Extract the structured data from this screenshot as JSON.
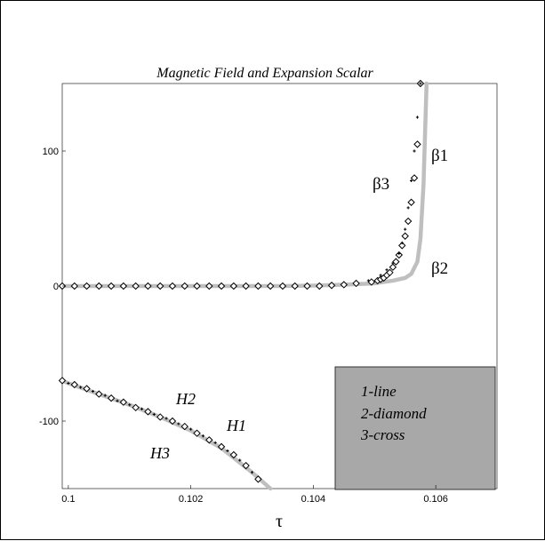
{
  "chart_data": {
    "type": "line",
    "title": "Magnetic Field and Expansion Scalar",
    "xlabel": "τ",
    "ylabel": "",
    "xlim": [
      0.0999,
      0.107
    ],
    "ylim": [
      -150,
      150
    ],
    "xticks": [
      {
        "value": 0.1,
        "label": "0.1"
      },
      {
        "value": 0.102,
        "label": "0.102"
      },
      {
        "value": 0.104,
        "label": "0.104"
      },
      {
        "value": 0.106,
        "label": "0.106"
      }
    ],
    "yticks": [
      {
        "value": 100,
        "label": "100"
      },
      {
        "value": 0,
        "label": "0"
      },
      {
        "value": -100,
        "label": "-100"
      }
    ],
    "grid": false,
    "series": [
      {
        "name": "β1",
        "style": "line",
        "color": "#bfbfbf",
        "x": [
          0.0999,
          0.101,
          0.102,
          0.103,
          0.1035,
          0.104,
          0.1045,
          0.105,
          0.1053,
          0.1055,
          0.1056,
          0.1057,
          0.10575,
          0.1058,
          0.10583,
          0.10585
        ],
        "y": [
          0,
          0,
          0,
          0,
          0,
          0.3,
          1,
          2,
          4,
          6,
          9,
          18,
          35,
          75,
          120,
          150
        ]
      },
      {
        "name": "β2",
        "style": "diamond",
        "color": "#000000",
        "x": [
          0.0999,
          0.1001,
          0.1003,
          0.1005,
          0.1007,
          0.1009,
          0.1011,
          0.1013,
          0.1015,
          0.1017,
          0.1019,
          0.1021,
          0.1023,
          0.1025,
          0.1027,
          0.1029,
          0.1031,
          0.1033,
          0.1035,
          0.1037,
          0.1039,
          0.1041,
          0.1043,
          0.1045,
          0.1047,
          0.10495,
          0.10505,
          0.1051,
          0.10515,
          0.1052,
          0.10525,
          0.1053,
          0.10535,
          0.1054,
          0.10545,
          0.1055,
          0.10555,
          0.1056,
          0.10565,
          0.1057,
          0.10575
        ],
        "y": [
          0,
          0,
          0,
          0,
          0,
          0,
          0,
          0,
          0,
          0,
          0,
          0,
          0,
          0,
          0,
          0,
          0,
          0,
          0,
          0,
          0,
          0,
          0.5,
          1,
          2,
          3,
          4,
          5,
          6,
          8,
          10,
          14,
          18,
          23,
          30,
          37,
          48,
          62,
          80,
          105,
          150
        ]
      },
      {
        "name": "β3",
        "style": "cross",
        "color": "#000000",
        "x": [
          0.1049,
          0.1051,
          0.1052,
          0.1053,
          0.1054,
          0.10545,
          0.1055,
          0.10555,
          0.1056,
          0.10565,
          0.1057,
          0.10575
        ],
        "y": [
          4,
          8,
          12,
          17,
          24,
          32,
          42,
          58,
          78,
          100,
          125,
          150
        ]
      },
      {
        "name": "H1",
        "style": "line",
        "color": "#bfbfbf",
        "x": [
          0.0999,
          0.1,
          0.1005,
          0.101,
          0.1015,
          0.102,
          0.1025,
          0.103,
          0.1033
        ],
        "y": [
          -70,
          -72,
          -80,
          -88,
          -97,
          -107,
          -120,
          -138,
          -150
        ]
      },
      {
        "name": "H2",
        "style": "diamond",
        "color": "#000000",
        "x": [
          0.0999,
          0.1001,
          0.1003,
          0.1005,
          0.1007,
          0.1009,
          0.1011,
          0.1013,
          0.1015,
          0.1017,
          0.1019,
          0.1021,
          0.1023,
          0.1025,
          0.1027,
          0.1029,
          0.1031
        ],
        "y": [
          -70,
          -73,
          -76,
          -80,
          -83,
          -86,
          -90,
          -93,
          -97,
          -100,
          -104,
          -109,
          -114,
          -119,
          -125,
          -133,
          -143
        ]
      },
      {
        "name": "H3",
        "style": "cross",
        "color": "#000000",
        "x": [
          0.1,
          0.1002,
          0.1004,
          0.1006,
          0.1008,
          0.101,
          0.1012,
          0.1014,
          0.1016,
          0.1018,
          0.102,
          0.1022,
          0.1024,
          0.1026,
          0.1028,
          0.103
        ],
        "y": [
          -72,
          -75,
          -78,
          -81,
          -85,
          -88,
          -91,
          -95,
          -98,
          -102,
          -106,
          -111,
          -116,
          -122,
          -129,
          -138
        ]
      }
    ],
    "annotations": [
      "β1",
      "β2",
      "β3",
      "H1",
      "H2",
      "H3"
    ],
    "legend": {
      "position": "bottom-right",
      "items": [
        "1-line",
        "2-diamond",
        "3-cross"
      ]
    }
  }
}
